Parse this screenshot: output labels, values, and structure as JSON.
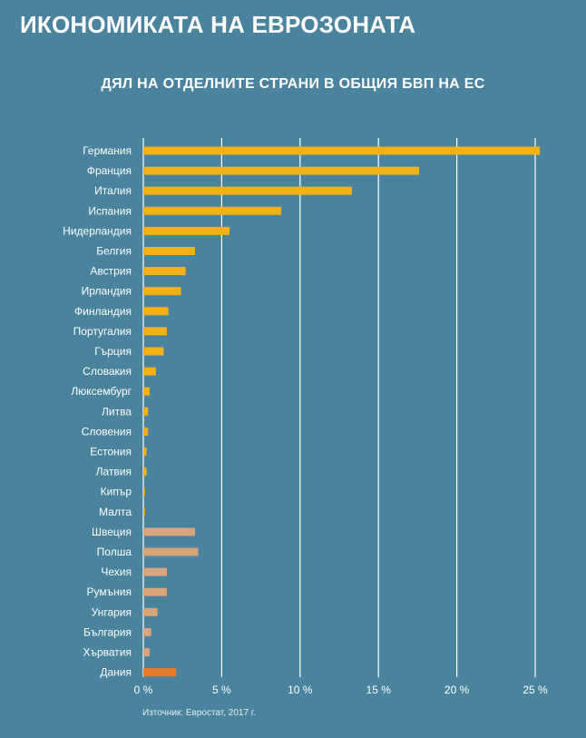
{
  "page_title": "ИКОНОМИКАТА НА ЕВРОЗОНАТА",
  "source": "Източник: Евростат, 2017 г.",
  "colors": {
    "eurozone": "#f4b116",
    "non_eurozone": "#d7a47c",
    "denmark": "#e8792a",
    "grid": "#ffffff",
    "background": "#4a839e"
  },
  "chart_data": {
    "type": "bar",
    "orientation": "horizontal",
    "title": "ДЯЛ НА ОТДЕЛНИТЕ СТРАНИ В ОБЩИЯ БВП НА ЕС",
    "xlabel": "",
    "ylabel": "",
    "xlim": [
      0,
      25
    ],
    "grid": true,
    "categories": [
      "Германия",
      "Франция",
      "Италия",
      "Испания",
      "Нидерландия",
      "Белгия",
      "Австрия",
      "Ирландия",
      "Финландия",
      "Португалия",
      "Гърция",
      "Словакия",
      "Люксембург",
      "Литва",
      "Словения",
      "Естония",
      "Латвия",
      "Кипър",
      "Малта",
      "Швеция",
      "Полша",
      "Чехия",
      "Румъния",
      "Унгария",
      "България",
      "Хърватия",
      "Дания"
    ],
    "values": [
      25.3,
      17.6,
      13.3,
      8.8,
      5.5,
      3.3,
      2.7,
      2.4,
      1.6,
      1.5,
      1.3,
      0.8,
      0.4,
      0.3,
      0.3,
      0.2,
      0.2,
      0.1,
      0.1,
      3.3,
      3.5,
      1.5,
      1.5,
      0.9,
      0.5,
      0.4,
      2.1
    ],
    "groups": [
      "eurozone",
      "eurozone",
      "eurozone",
      "eurozone",
      "eurozone",
      "eurozone",
      "eurozone",
      "eurozone",
      "eurozone",
      "eurozone",
      "eurozone",
      "eurozone",
      "eurozone",
      "eurozone",
      "eurozone",
      "eurozone",
      "eurozone",
      "eurozone",
      "eurozone",
      "non_eurozone",
      "non_eurozone",
      "non_eurozone",
      "non_eurozone",
      "non_eurozone",
      "non_eurozone",
      "non_eurozone",
      "denmark"
    ],
    "x_ticks": [
      0,
      5,
      10,
      15,
      20,
      25
    ],
    "x_tick_labels": [
      "0 %",
      "5 %",
      "10 %",
      "15 %",
      "20 %",
      "25 %"
    ]
  }
}
